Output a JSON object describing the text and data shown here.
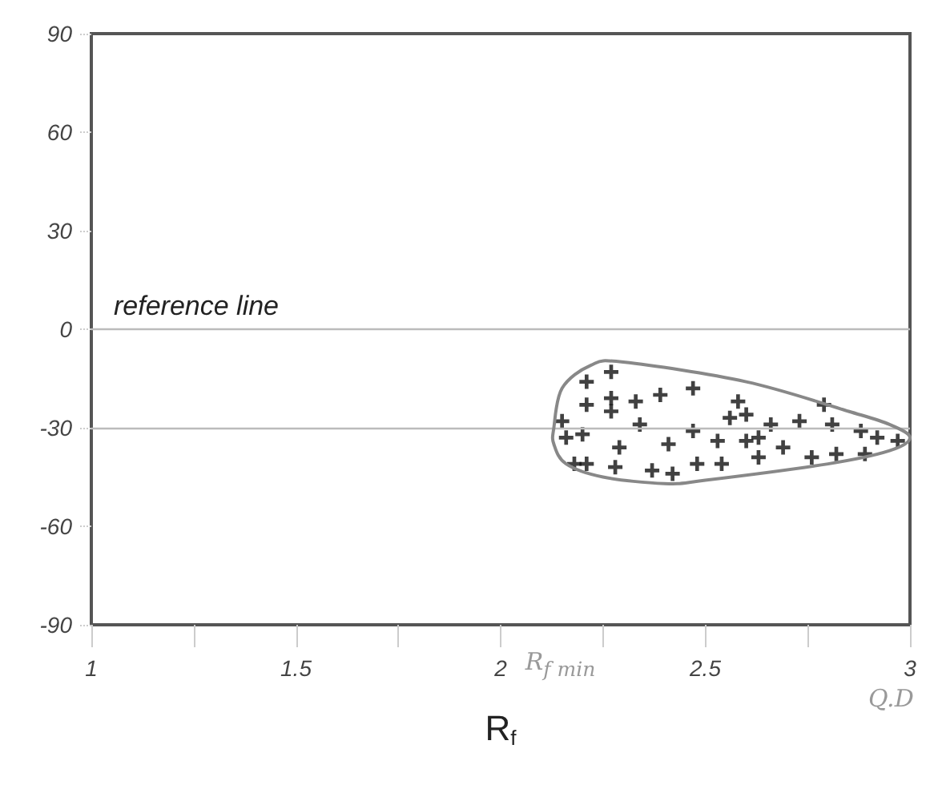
{
  "chart_data": {
    "type": "scatter",
    "xlabel": "R$_{f}$",
    "x": [
      2.27,
      2.21,
      2.47,
      2.21,
      2.27,
      2.27,
      2.33,
      2.39,
      2.58,
      2.6,
      2.56,
      2.79,
      2.15,
      2.34,
      2.66,
      2.73,
      2.81,
      2.16,
      2.2,
      2.47,
      2.63,
      2.6,
      2.53,
      2.88,
      2.92,
      2.97,
      2.29,
      2.41,
      2.69,
      2.82,
      2.89,
      2.63,
      2.76,
      2.18,
      2.21,
      2.28,
      2.48,
      2.54,
      2.37,
      2.42
    ],
    "values": [
      -13,
      -16,
      -18,
      -23,
      -21,
      -25,
      -22,
      -20,
      -22,
      -26,
      -27,
      -23,
      -28,
      -29,
      -29,
      -28,
      -29,
      -33,
      -32,
      -31,
      -33,
      -34,
      -34,
      -31,
      -33,
      -34,
      -36,
      -35,
      -36,
      -38,
      -38,
      -39,
      -39,
      -41,
      -41,
      -42,
      -41,
      -41,
      -43,
      -44
    ],
    "color": "#111111",
    "marker": "cross",
    "xlim": [
      1,
      3
    ],
    "xticks": [
      1,
      {
        "value": 1.25,
        "label": null
      },
      1.5,
      {
        "value": 1.75,
        "label": null
      },
      2,
      {
        "value": 2.25,
        "label": null
      },
      2.5,
      {
        "value": 2.75,
        "label": null
      },
      3
    ],
    "ylim": [
      -90,
      90
    ],
    "yticks": [
      -90,
      -60,
      -30,
      0,
      30,
      60,
      90
    ],
    "ref_lines": [
      {
        "axis": "y",
        "value": 0,
        "label": "reference line",
        "color": "#bbbbbb"
      },
      {
        "axis": "y",
        "value": -30,
        "color": "#bbbbbb"
      }
    ],
    "annotations": [
      "R$_{f min}$",
      "Q.D"
    ],
    "grid": false
  }
}
